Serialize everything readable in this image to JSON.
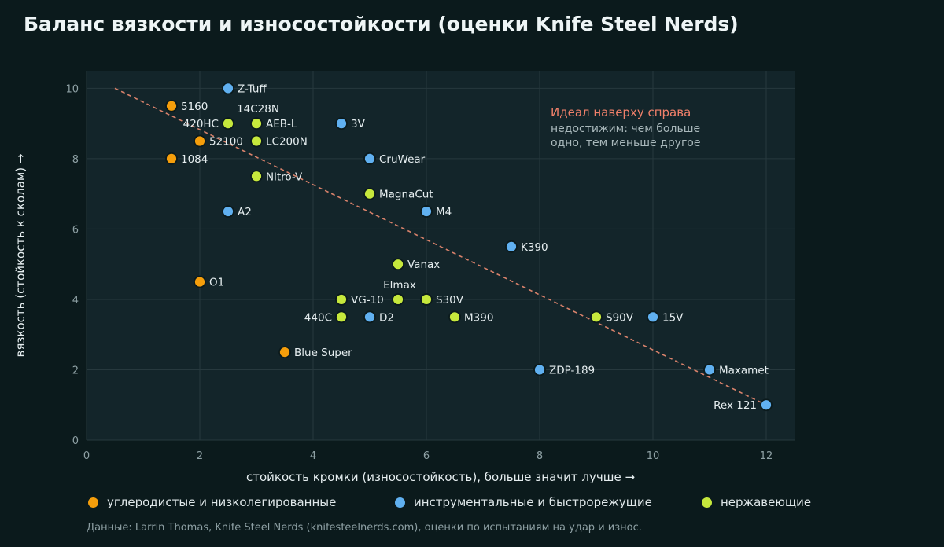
{
  "title": "Баланс вязкости и износостойкости (оценки Knife Steel Nerds)",
  "source": "Данные: Larrin Thomas, Knife Steel Nerds (knifesteelnerds.com), оценки по испытаниям на удар и износ.",
  "legend": [
    {
      "key": "carbon",
      "label": "углеродистые и низколегированные",
      "color": "#f59e0b"
    },
    {
      "key": "tool",
      "label": "инструментальные и быстрорежущие",
      "color": "#60b0f0"
    },
    {
      "key": "stainless",
      "label": "нержавеющие",
      "color": "#c6e83c"
    }
  ],
  "annotation": {
    "heading": "Идеал наверху справа",
    "line1": "недостижим: чем больше",
    "line2": "одно, тем меньше другое",
    "heading_color": "#f0806a"
  },
  "chart_data": {
    "type": "scatter",
    "title": "Баланс вязкости и износостойкости (оценки Knife Steel Nerds)",
    "xlabel": "стойкость кромки (износостойкость), больше значит лучше →",
    "ylabel": "вязкость (стойкость к сколам) →",
    "xlim": [
      0,
      12.5
    ],
    "ylim": [
      0,
      10.5
    ],
    "xticks": [
      0,
      2,
      4,
      6,
      8,
      10,
      12
    ],
    "yticks": [
      0,
      2,
      4,
      6,
      8,
      10
    ],
    "grid": true,
    "legend_position": "bottom",
    "trend_line": {
      "x": [
        0.5,
        12
      ],
      "y": [
        10,
        1
      ]
    },
    "points": [
      {
        "label": "5160",
        "x": 1.5,
        "y": 9.5,
        "group": "carbon",
        "label_side": "right"
      },
      {
        "label": "1084",
        "x": 1.5,
        "y": 8,
        "group": "carbon",
        "label_side": "right"
      },
      {
        "label": "52100",
        "x": 2,
        "y": 8.5,
        "group": "carbon",
        "label_side": "right"
      },
      {
        "label": "O1",
        "x": 2,
        "y": 4.5,
        "group": "carbon",
        "label_side": "right"
      },
      {
        "label": "Blue Super",
        "x": 3.5,
        "y": 2.5,
        "group": "carbon",
        "label_side": "right"
      },
      {
        "label": "Z-Tuff",
        "x": 2.5,
        "y": 10,
        "group": "tool",
        "label_side": "right"
      },
      {
        "label": "A2",
        "x": 2.5,
        "y": 6.5,
        "group": "tool",
        "label_side": "right"
      },
      {
        "label": "3V",
        "x": 4.5,
        "y": 9,
        "group": "tool",
        "label_side": "right"
      },
      {
        "label": "CruWear",
        "x": 5,
        "y": 8,
        "group": "tool",
        "label_side": "right"
      },
      {
        "label": "M4",
        "x": 6,
        "y": 6.5,
        "group": "tool",
        "label_side": "right"
      },
      {
        "label": "K390",
        "x": 7.5,
        "y": 5.5,
        "group": "tool",
        "label_side": "right"
      },
      {
        "label": "D2",
        "x": 5,
        "y": 3.5,
        "group": "tool",
        "label_side": "right"
      },
      {
        "label": "15V",
        "x": 10,
        "y": 3.5,
        "group": "tool",
        "label_side": "right"
      },
      {
        "label": "ZDP-189",
        "x": 8,
        "y": 2,
        "group": "tool",
        "label_side": "right"
      },
      {
        "label": "Maxamet",
        "x": 11,
        "y": 2,
        "group": "tool",
        "label_side": "right"
      },
      {
        "label": "Rex 121",
        "x": 12,
        "y": 1,
        "group": "tool",
        "label_side": "left"
      },
      {
        "label": "420HC",
        "x": 2.5,
        "y": 9,
        "group": "stainless",
        "label_side": "left"
      },
      {
        "label": "14C28N",
        "x": 3,
        "y": 9,
        "group": "stainless",
        "label_side": "above"
      },
      {
        "label": "AEB-L",
        "x": 3,
        "y": 9,
        "group": "stainless",
        "label_side": "right"
      },
      {
        "label": "LC200N",
        "x": 3,
        "y": 8.5,
        "group": "stainless",
        "label_side": "right"
      },
      {
        "label": "Nitro-V",
        "x": 3,
        "y": 7.5,
        "group": "stainless",
        "label_side": "right"
      },
      {
        "label": "MagnaCut",
        "x": 5,
        "y": 7,
        "group": "stainless",
        "label_side": "right"
      },
      {
        "label": "Vanax",
        "x": 5.5,
        "y": 5,
        "group": "stainless",
        "label_side": "right"
      },
      {
        "label": "VG-10",
        "x": 4.5,
        "y": 4,
        "group": "stainless",
        "label_side": "right"
      },
      {
        "label": "Elmax",
        "x": 5.5,
        "y": 4,
        "group": "stainless",
        "label_side": "above"
      },
      {
        "label": "S30V",
        "x": 6,
        "y": 4,
        "group": "stainless",
        "label_side": "right"
      },
      {
        "label": "440C",
        "x": 4.5,
        "y": 3.5,
        "group": "stainless",
        "label_side": "left"
      },
      {
        "label": "M390",
        "x": 6.5,
        "y": 3.5,
        "group": "stainless",
        "label_side": "right"
      },
      {
        "label": "S90V",
        "x": 9,
        "y": 3.5,
        "group": "stainless",
        "label_side": "right"
      }
    ]
  }
}
